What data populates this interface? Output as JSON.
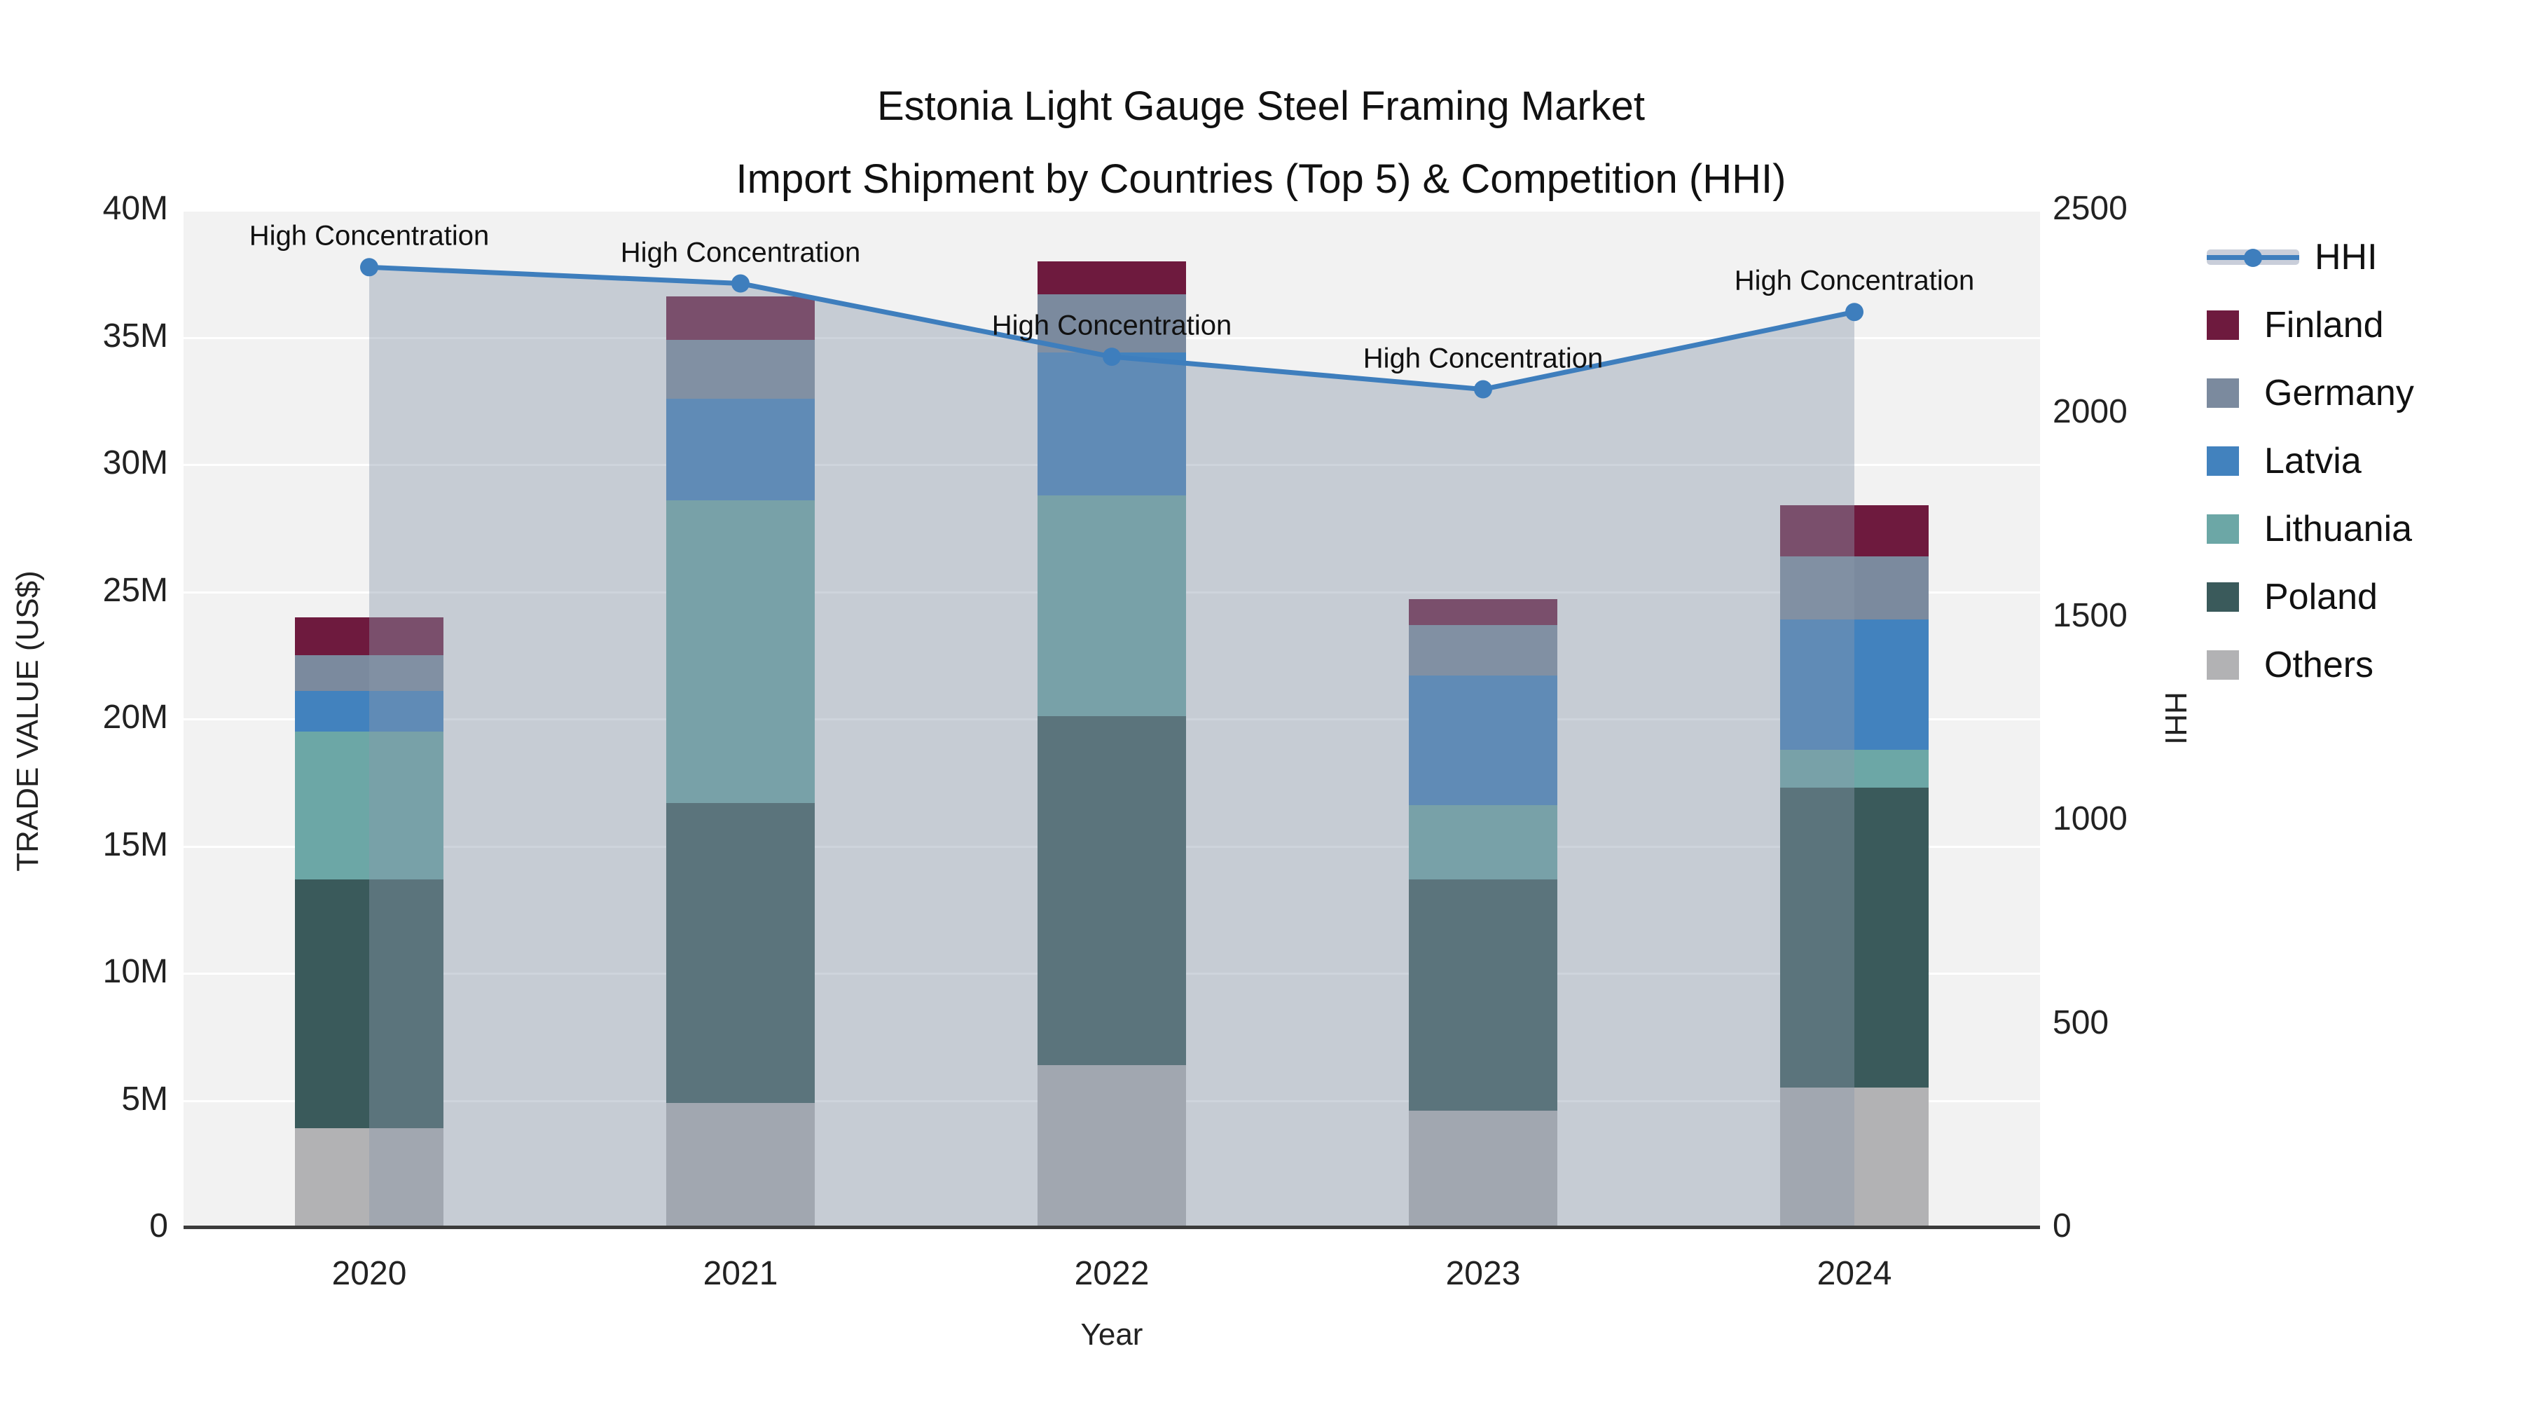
{
  "title": {
    "line1": "Estonia Light Gauge Steel Framing Market",
    "line2": "Import Shipment by Countries (Top 5) & Competition (HHI)"
  },
  "colors": {
    "finland": "#6E1A3E",
    "germany": "#7B8A9E",
    "latvia": "#4282BE",
    "lithuania": "#6CA7A6",
    "poland": "#3A5A5B",
    "others": "#B2B2B4",
    "hhi_line": "#3E7EBD",
    "hhi_fill": "rgba(138,152,172,0.42)",
    "plot_bg": "#F2F2F2",
    "grid": "#FFFFFF",
    "axis_line": "#3B3B3B"
  },
  "chart_data": {
    "type": "bar+line",
    "title": "Estonia Light Gauge Steel Framing Market — Import Shipment by Countries (Top 5) & Competition (HHI)",
    "categories": [
      "2020",
      "2021",
      "2022",
      "2023",
      "2024"
    ],
    "stack_order_note": "bars stacked bottom to top in listed order, values in millions US$",
    "series": [
      {
        "name": "Others",
        "color_key": "others",
        "values": [
          3.9,
          4.9,
          6.4,
          4.6,
          5.5
        ]
      },
      {
        "name": "Poland",
        "color_key": "poland",
        "values": [
          9.8,
          11.8,
          13.7,
          9.1,
          11.8
        ]
      },
      {
        "name": "Lithuania",
        "color_key": "lithuania",
        "values": [
          5.8,
          11.9,
          8.7,
          2.9,
          1.5
        ]
      },
      {
        "name": "Latvia",
        "color_key": "latvia",
        "values": [
          1.6,
          4.0,
          5.6,
          5.1,
          5.1
        ]
      },
      {
        "name": "Germany",
        "color_key": "germany",
        "values": [
          1.4,
          2.3,
          2.3,
          2.0,
          2.5
        ]
      },
      {
        "name": "Finland",
        "color_key": "finland",
        "values": [
          1.5,
          1.7,
          1.3,
          1.0,
          2.0
        ]
      }
    ],
    "line_series": {
      "name": "HHI",
      "values": [
        2360,
        2320,
        2140,
        2060,
        2250
      ],
      "axis": "right"
    },
    "annotations": [
      {
        "text": "High Concentration",
        "category": "2020"
      },
      {
        "text": "High Concentration",
        "category": "2021"
      },
      {
        "text": "High Concentration",
        "category": "2022"
      },
      {
        "text": "High Concentration",
        "category": "2023"
      },
      {
        "text": "High Concentration",
        "category": "2024"
      }
    ],
    "left_axis": {
      "title": "TRADE VALUE (US$)",
      "min": 0,
      "max": 40000000,
      "ticks": [
        "0",
        "5M",
        "10M",
        "15M",
        "20M",
        "25M",
        "30M",
        "35M",
        "40M"
      ]
    },
    "right_axis": {
      "title": "HHI",
      "min": 0,
      "max": 2500,
      "ticks": [
        "0",
        "500",
        "1000",
        "1500",
        "2000",
        "2500"
      ]
    },
    "x_axis": {
      "title": "Year"
    },
    "legend_position": "right",
    "grid": "horizontal-only"
  },
  "legend": {
    "items": [
      {
        "label": "HHI",
        "kind": "line"
      },
      {
        "label": "Finland",
        "kind": "swatch",
        "color_key": "finland"
      },
      {
        "label": "Germany",
        "kind": "swatch",
        "color_key": "germany"
      },
      {
        "label": "Latvia",
        "kind": "swatch",
        "color_key": "latvia"
      },
      {
        "label": "Lithuania",
        "kind": "swatch",
        "color_key": "lithuania"
      },
      {
        "label": "Poland",
        "kind": "swatch",
        "color_key": "poland"
      },
      {
        "label": "Others",
        "kind": "swatch",
        "color_key": "others"
      }
    ]
  }
}
